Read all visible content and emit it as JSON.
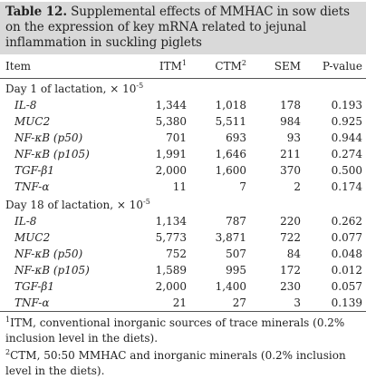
{
  "caption": {
    "table_number": "Table 12.",
    "text": "Supplemental effects of MMHAC in sow diets on the expression of key mRNA related to jejunal inflammation in suckling piglets"
  },
  "header": {
    "item": "Item",
    "itm": "ITM",
    "itm_sup": "1",
    "ctm": "CTM",
    "ctm_sup": "2",
    "sem": "SEM",
    "pvalue": "P-value"
  },
  "sections": [
    {
      "title": "Day 1 of lactation, × 10",
      "title_exp": "-5",
      "rows": [
        {
          "label": "IL-8",
          "itm": "1,344",
          "ctm": "1,018",
          "sem": "178",
          "p": "0.193"
        },
        {
          "label": "MUC2",
          "itm": "5,380",
          "ctm": "5,511",
          "sem": "984",
          "p": "0.925"
        },
        {
          "label": "NF-κB (p50)",
          "itm": "701",
          "ctm": "693",
          "sem": "93",
          "p": "0.944"
        },
        {
          "label": "NF-κB (p105)",
          "itm": "1,991",
          "ctm": "1,646",
          "sem": "211",
          "p": "0.274"
        },
        {
          "label": "TGF-β1",
          "itm": "2,000",
          "ctm": "1,600",
          "sem": "370",
          "p": "0.500"
        },
        {
          "label": "TNF-α",
          "itm": "11",
          "ctm": "7",
          "sem": "2",
          "p": "0.174"
        }
      ]
    },
    {
      "title": "Day 18 of lactation, × 10",
      "title_exp": "-5",
      "rows": [
        {
          "label": "IL-8",
          "itm": "1,134",
          "ctm": "787",
          "sem": "220",
          "p": "0.262"
        },
        {
          "label": "MUC2",
          "itm": "5,773",
          "ctm": "3,871",
          "sem": "722",
          "p": "0.077"
        },
        {
          "label": "NF-κB (p50)",
          "itm": "752",
          "ctm": "507",
          "sem": "84",
          "p": "0.048"
        },
        {
          "label": "NF-κB (p105)",
          "itm": "1,589",
          "ctm": "995",
          "sem": "172",
          "p": "0.012"
        },
        {
          "label": "TGF-β1",
          "itm": "2,000",
          "ctm": "1,400",
          "sem": "230",
          "p": "0.057"
        },
        {
          "label": "TNF-α",
          "itm": "21",
          "ctm": "27",
          "sem": "3",
          "p": "0.139"
        }
      ]
    }
  ],
  "footnotes": [
    {
      "mark": "1",
      "text": "ITM, conventional inorganic sources of trace minerals (0.2% inclusion level in the diets)."
    },
    {
      "mark": "2",
      "text": "CTM, 50:50 MMHAC and inorganic minerals (0.2% inclusion level in the diets)."
    }
  ]
}
